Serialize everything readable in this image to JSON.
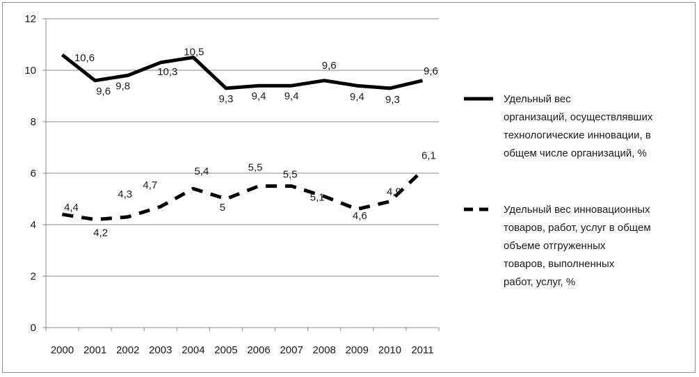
{
  "chart_data": {
    "type": "line",
    "x": [
      "2000",
      "2001",
      "2002",
      "2003",
      "2004",
      "2005",
      "2006",
      "2007",
      "2008",
      "2009",
      "2010",
      "2011"
    ],
    "ylim": [
      0,
      12
    ],
    "yticks": [
      0,
      2,
      4,
      6,
      8,
      10,
      12
    ],
    "grid": true,
    "legend_position": "right",
    "series": [
      {
        "name": "Удельный вес организаций, осуществлявших технологические инновации, в общем числе организаций, %",
        "name_lines": [
          "Удельный вес",
          "организаций, осуществлявших",
          "технологические инновации, в",
          "общем числе организаций, %"
        ],
        "style": "solid",
        "color": "#000000",
        "values": [
          10.6,
          9.6,
          9.8,
          10.3,
          10.5,
          9.3,
          9.4,
          9.4,
          9.6,
          9.4,
          9.3,
          9.6
        ],
        "labels": [
          "10,6",
          "9,6",
          "9,8",
          "10,3",
          "10,5",
          "9,3",
          "9,4",
          "9,4",
          "9,6",
          "9,4",
          "9,3",
          "9,6"
        ]
      },
      {
        "name": "Удельный вес инновационных товаров, работ, услуг в общем объеме отгруженных товаров, выполненных работ, услуг, %",
        "name_lines": [
          "Удельный вес инновационных",
          "товаров, работ, услуг в общем",
          "объеме отгруженных",
          "товаров, выполненных",
          "работ, услуг, %"
        ],
        "style": "dashed",
        "color": "#000000",
        "values": [
          4.4,
          4.2,
          4.3,
          4.7,
          5.4,
          5.0,
          5.5,
          5.5,
          5.1,
          4.6,
          4.9,
          6.1
        ],
        "labels": [
          "4,4",
          "4,2",
          "4,3",
          "4,7",
          "5,4",
          "5",
          "5,5",
          "5,5",
          "5,1",
          "4,6",
          "4,9",
          "6,1"
        ]
      }
    ]
  }
}
